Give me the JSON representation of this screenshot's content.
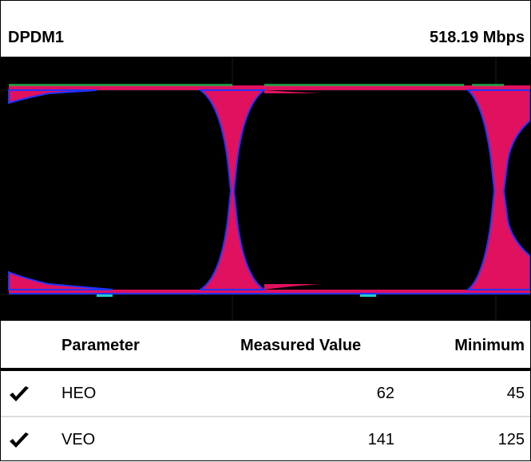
{
  "header": {
    "title": "DPDM1",
    "data_rate": "518.19 Mbps"
  },
  "eye_diagram": {
    "background_color": "#000000",
    "fill_color": "#e0115f",
    "edge_color": "#2233ff"
  },
  "table": {
    "columns": [
      "Parameter",
      "Measured Value",
      "Minimum"
    ],
    "rows": [
      {
        "status": "check-icon",
        "parameter": "HEO",
        "measured": "62",
        "minimum": "45"
      },
      {
        "status": "check-icon",
        "parameter": "VEO",
        "measured": "141",
        "minimum": "125"
      }
    ]
  }
}
